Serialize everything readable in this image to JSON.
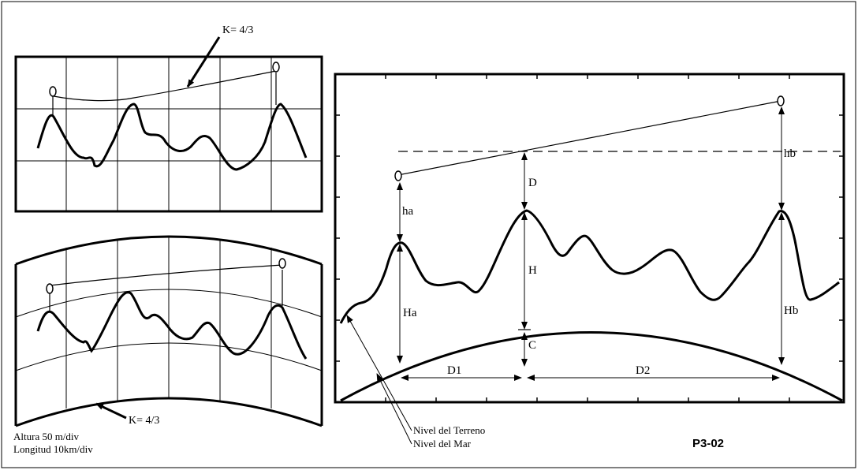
{
  "panel_top": {
    "label_k": "K= 4/3"
  },
  "panel_curved": {
    "label_k": "K= 4/3",
    "scale_height": "Altura 50 m/div",
    "scale_length": "Longitud 10km/div"
  },
  "panel_main": {
    "label_ha": "ha",
    "label_Ha": "Ha",
    "label_D": "D",
    "label_H": "H",
    "label_C": "C",
    "label_hb": "hb",
    "label_Hb": "Hb",
    "label_D1": "D1",
    "label_D2": "D2",
    "legend_terrain": "Nivel del Terreno",
    "legend_sea": "Nivel del Mar",
    "figure_code": "P3-02"
  }
}
